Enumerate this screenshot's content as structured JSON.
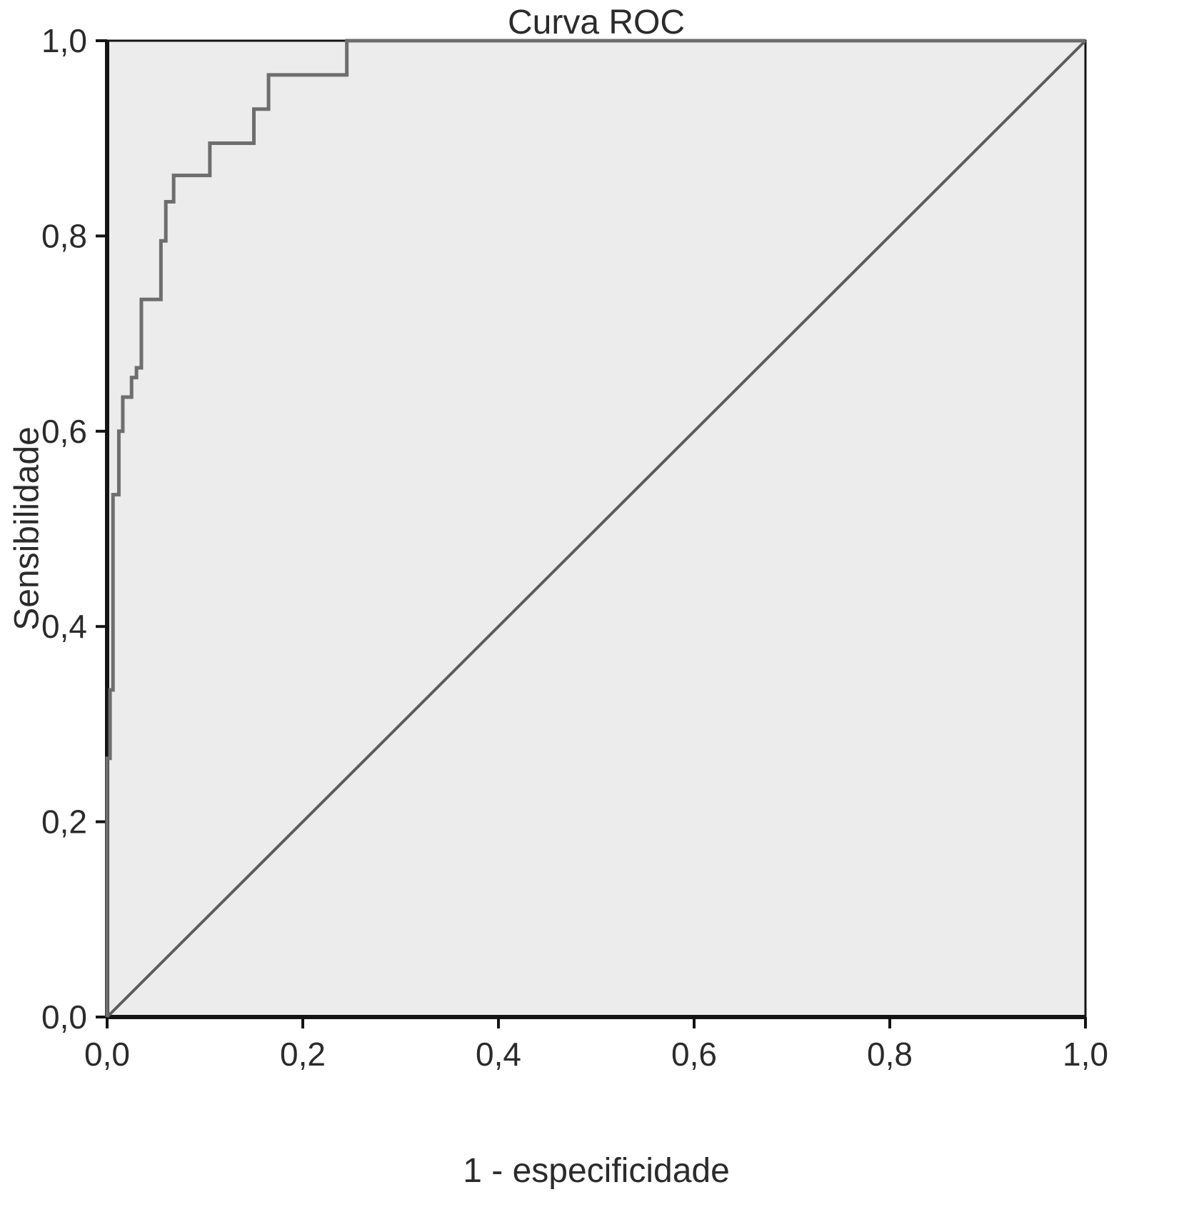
{
  "chart_data": {
    "type": "line",
    "subtype": "roc-step-curve",
    "title": "Curva ROC",
    "xlabel": "1 - especificidade",
    "ylabel": "Sensibilidade",
    "xlim": [
      0,
      1
    ],
    "ylim": [
      0,
      1
    ],
    "grid": false,
    "legend": "none",
    "xticks": [
      "0,0",
      "0,2",
      "0,4",
      "0,6",
      "0,8",
      "1,0"
    ],
    "yticks": [
      "0,0",
      "0,2",
      "0,4",
      "0,6",
      "0,8",
      "1,0"
    ],
    "xtick_values": [
      0,
      0.2,
      0.4,
      0.6,
      0.8,
      1.0
    ],
    "ytick_values": [
      0,
      0.2,
      0.4,
      0.6,
      0.8,
      1.0
    ],
    "series": [
      {
        "name": "ROC curve",
        "style": "step",
        "x": [
          0,
          0,
          0.003,
          0.003,
          0.006,
          0.006,
          0.012,
          0.012,
          0.016,
          0.016,
          0.025,
          0.025,
          0.03,
          0.03,
          0.035,
          0.035,
          0.055,
          0.055,
          0.06,
          0.06,
          0.068,
          0.068,
          0.105,
          0.105,
          0.15,
          0.15,
          0.165,
          0.165,
          0.245,
          0.245,
          1.0
        ],
        "y": [
          0,
          0.265,
          0.265,
          0.335,
          0.335,
          0.535,
          0.535,
          0.6,
          0.6,
          0.635,
          0.635,
          0.655,
          0.655,
          0.665,
          0.665,
          0.735,
          0.735,
          0.795,
          0.795,
          0.835,
          0.835,
          0.862,
          0.862,
          0.895,
          0.895,
          0.93,
          0.93,
          0.965,
          0.965,
          1.0,
          1.0
        ]
      },
      {
        "name": "Reference diagonal",
        "style": "line",
        "x": [
          0,
          1
        ],
        "y": [
          0,
          1
        ]
      }
    ],
    "colors": {
      "curve": "#6e6e6e",
      "reference": "#5c5c5c",
      "plot_background": "#ececec",
      "frame": "#141414",
      "text": "#2b2b2b"
    }
  }
}
